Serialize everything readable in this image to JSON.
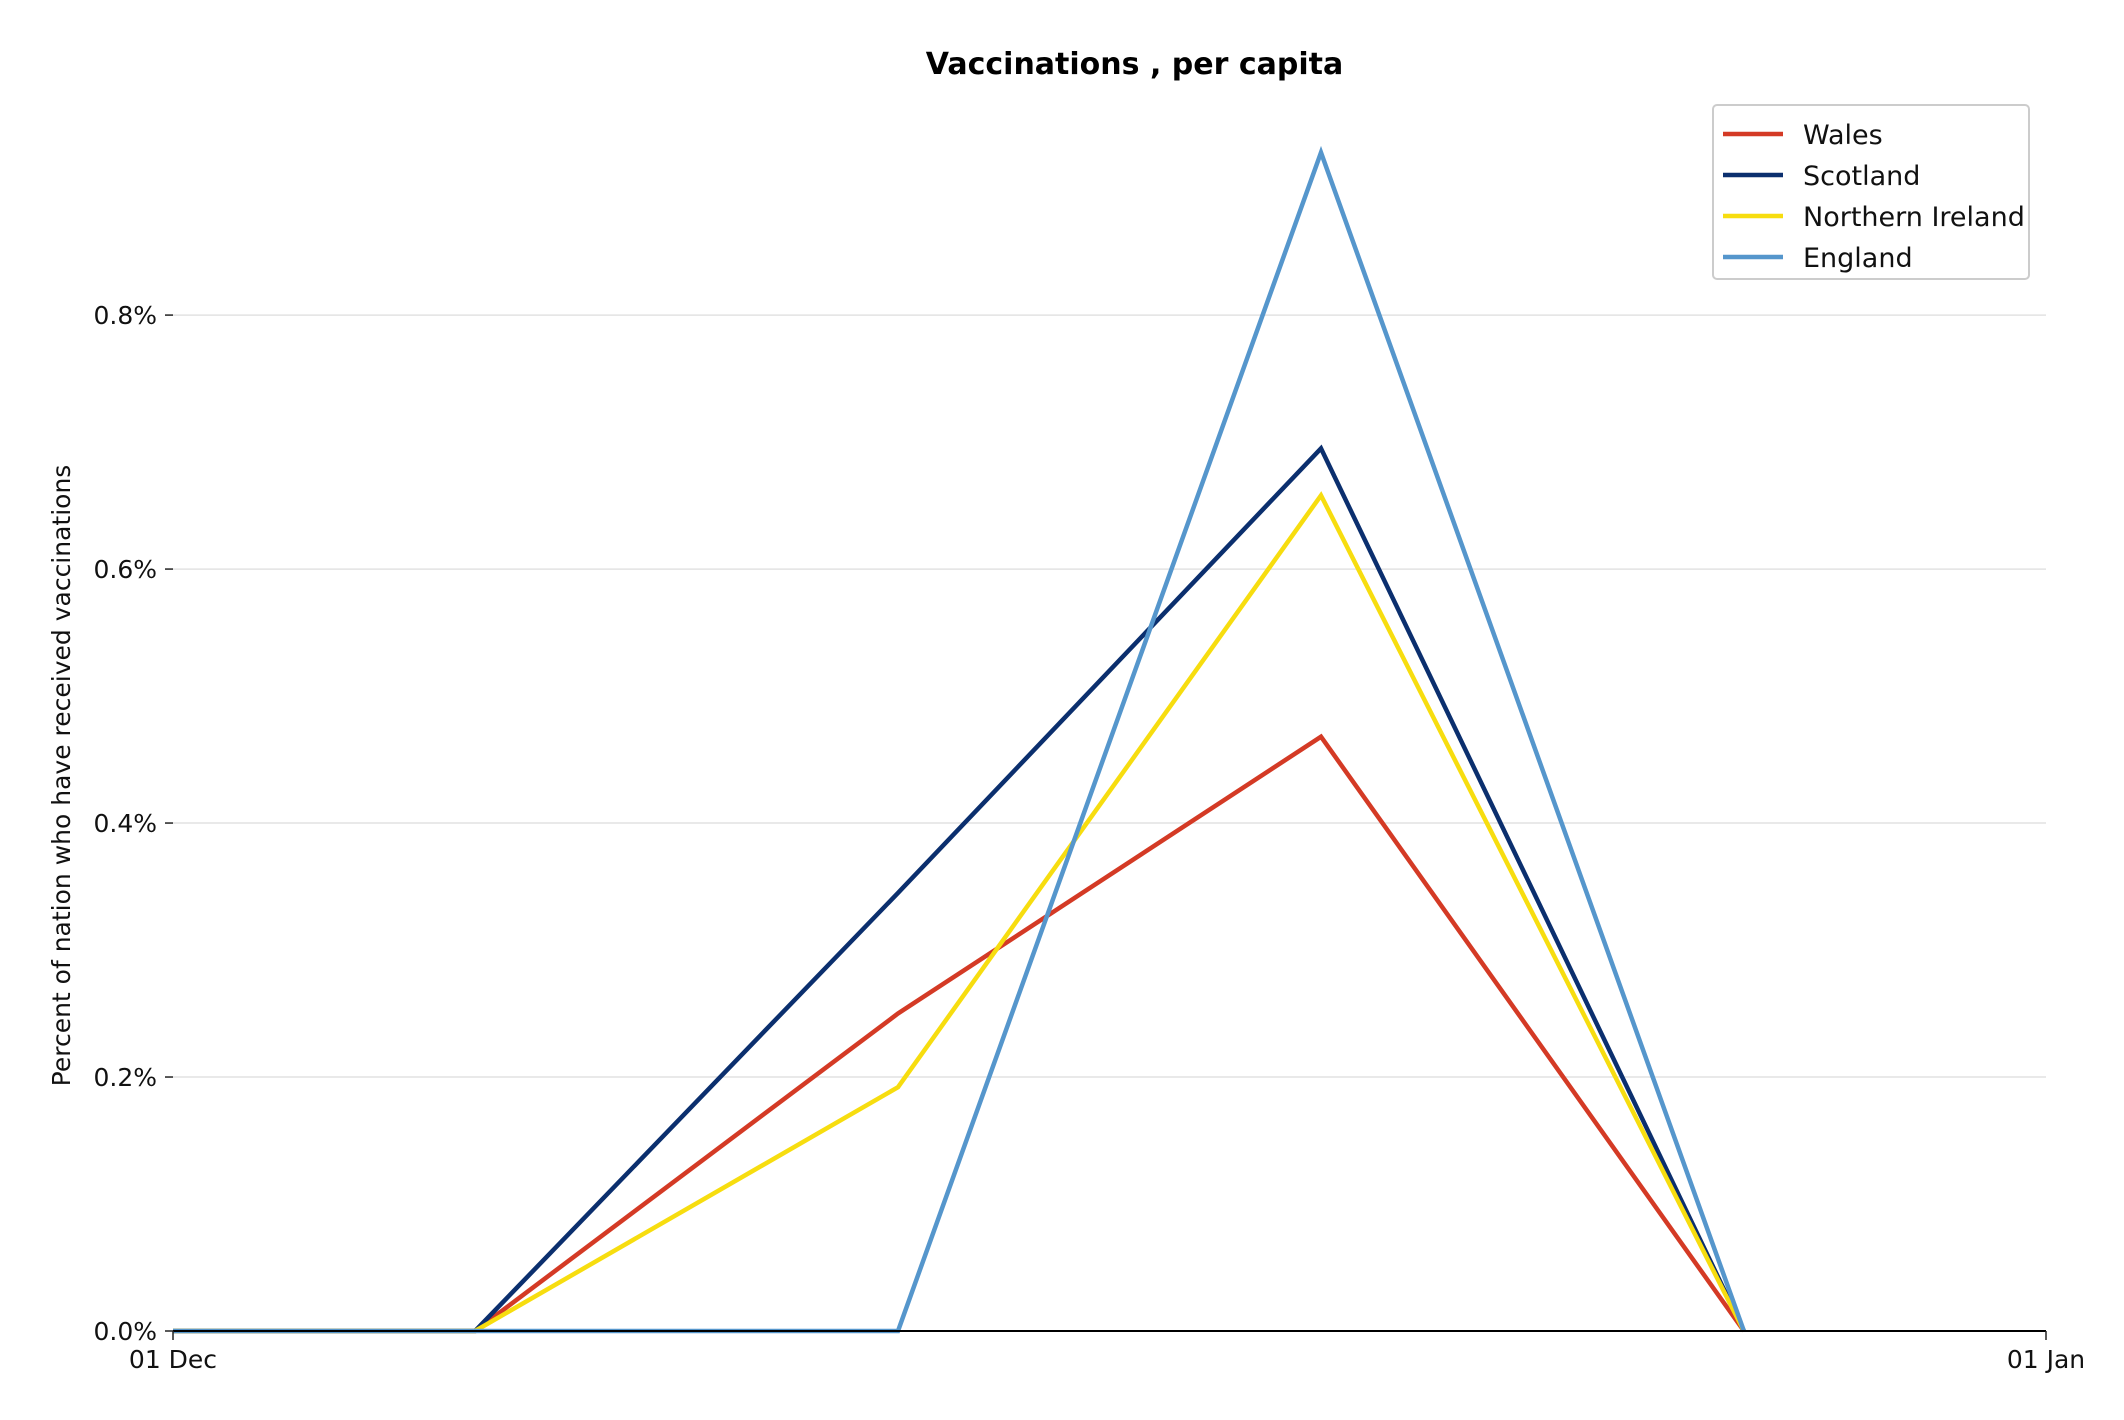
{
  "chart_data": {
    "type": "line",
    "title": "Vaccinations , per capita",
    "xlabel": "",
    "ylabel": "Percent of nation who have received vaccinations",
    "x_tick_labels": [
      "01 Dec",
      "01 Jan"
    ],
    "y_tick_labels": [
      "0.0%",
      "0.2%",
      "0.4%",
      "0.6%",
      "0.8%"
    ],
    "y_ticks": [
      0,
      0.2,
      0.4,
      0.6,
      0.8
    ],
    "x": [
      "2020-12-01",
      "2020-12-06",
      "2020-12-13",
      "2020-12-20",
      "2020-12-27"
    ],
    "xlim": [
      "2020-12-01",
      "2021-01-01"
    ],
    "ylim": [
      0,
      0.93
    ],
    "grid": true,
    "legend_position": "top-right",
    "series": [
      {
        "name": "Wales",
        "color": "#d43a25",
        "values": [
          0,
          0,
          0.25,
          0.468,
          0
        ]
      },
      {
        "name": "Scotland",
        "color": "#0b2f6e",
        "values": [
          0,
          0,
          0.345,
          0.695,
          0
        ]
      },
      {
        "name": "Northern Ireland",
        "color": "#f7dd0f",
        "values": [
          0,
          0,
          0.192,
          0.658,
          0
        ]
      },
      {
        "name": "England",
        "color": "#5596cc",
        "values": [
          0,
          0,
          0,
          0.928,
          0
        ]
      }
    ]
  }
}
